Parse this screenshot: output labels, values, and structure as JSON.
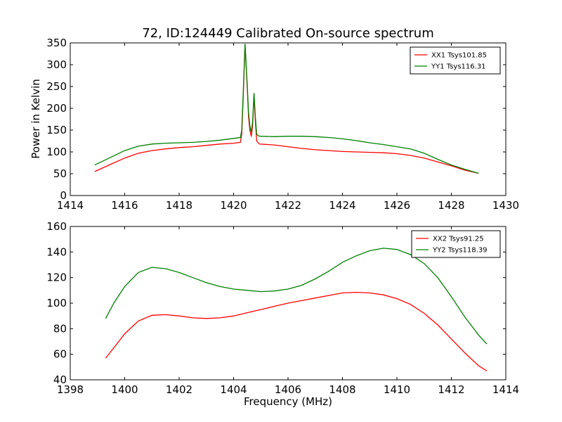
{
  "chart_data": [
    {
      "type": "line",
      "title": "72, ID:124449 Calibrated On-source spectrum",
      "xlabel": "",
      "ylabel": "Power in Kelvin",
      "xlim": [
        1414,
        1430
      ],
      "ylim": [
        0,
        350
      ],
      "xticks": [
        1414,
        1416,
        1418,
        1420,
        1422,
        1424,
        1426,
        1428,
        1430
      ],
      "yticks": [
        0,
        50,
        100,
        150,
        200,
        250,
        300,
        350
      ],
      "legend": "top-right",
      "series": [
        {
          "name": "XX1 Tsys101.85",
          "color": "#ff0000",
          "x": [
            1414.9,
            1415.5,
            1416,
            1416.5,
            1417,
            1417.5,
            1418,
            1418.5,
            1419,
            1419.5,
            1420,
            1420.25,
            1420.3,
            1420.35,
            1420.42,
            1420.5,
            1420.55,
            1420.6,
            1420.65,
            1420.7,
            1420.75,
            1420.8,
            1420.85,
            1420.95,
            1421.5,
            1422,
            1422.5,
            1423,
            1423.5,
            1424,
            1424.5,
            1425,
            1425.5,
            1426,
            1426.5,
            1427,
            1427.5,
            1428,
            1428.5,
            1429
          ],
          "y": [
            55,
            72,
            86,
            97,
            103,
            107,
            110,
            112,
            115,
            118,
            120,
            122,
            140,
            220,
            345,
            250,
            180,
            150,
            135,
            160,
            230,
            170,
            125,
            118,
            116,
            112,
            108,
            105,
            103,
            101,
            100,
            99,
            98,
            96,
            92,
            86,
            77,
            68,
            58,
            51
          ]
        },
        {
          "name": "YY1 Tsys116.31",
          "color": "#008000",
          "x": [
            1414.9,
            1415.5,
            1416,
            1416.5,
            1417,
            1417.5,
            1418,
            1418.5,
            1419,
            1419.5,
            1420,
            1420.25,
            1420.3,
            1420.35,
            1420.42,
            1420.5,
            1420.55,
            1420.6,
            1420.65,
            1420.7,
            1420.75,
            1420.8,
            1420.85,
            1420.95,
            1421.5,
            1422,
            1422.5,
            1423,
            1423.5,
            1424,
            1424.5,
            1425,
            1425.5,
            1426,
            1426.5,
            1427,
            1427.5,
            1428,
            1428.5,
            1429
          ],
          "y": [
            70,
            88,
            103,
            113,
            118,
            120,
            121,
            122,
            124,
            127,
            131,
            133,
            150,
            230,
            348,
            255,
            190,
            160,
            145,
            170,
            235,
            180,
            140,
            136,
            135,
            136,
            136,
            135,
            133,
            130,
            126,
            121,
            117,
            112,
            107,
            97,
            83,
            70,
            60,
            51
          ]
        }
      ]
    },
    {
      "type": "line",
      "title": "",
      "xlabel": "Frequency (MHz)",
      "ylabel": "",
      "xlim": [
        1398,
        1414
      ],
      "ylim": [
        40,
        160
      ],
      "xticks": [
        1398,
        1400,
        1402,
        1404,
        1406,
        1408,
        1410,
        1412,
        1414
      ],
      "yticks": [
        40,
        60,
        80,
        100,
        120,
        140,
        160
      ],
      "legend": "top-right",
      "series": [
        {
          "name": "XX2 Tsys91.25",
          "color": "#ff0000",
          "x": [
            1399.3,
            1399.6,
            1400,
            1400.5,
            1401,
            1401.5,
            1402,
            1402.5,
            1403,
            1403.5,
            1404,
            1404.5,
            1405,
            1405.5,
            1406,
            1406.5,
            1407,
            1407.5,
            1408,
            1408.5,
            1409,
            1409.5,
            1410,
            1410.5,
            1411,
            1411.5,
            1412,
            1412.5,
            1413,
            1413.3
          ],
          "y": [
            57,
            65,
            76,
            86,
            90.5,
            91,
            90,
            88.5,
            88,
            88.5,
            90,
            92.5,
            95,
            97.5,
            100,
            102,
            104,
            106,
            108,
            108.5,
            108,
            106.5,
            103.5,
            99,
            92,
            83,
            72,
            61,
            51,
            47
          ]
        },
        {
          "name": "YY2 Tsys118.39",
          "color": "#008000",
          "x": [
            1399.3,
            1399.6,
            1400,
            1400.5,
            1401,
            1401.5,
            1402,
            1402.5,
            1403,
            1403.5,
            1404,
            1404.5,
            1405,
            1405.5,
            1406,
            1406.5,
            1407,
            1407.5,
            1408,
            1408.5,
            1409,
            1409.5,
            1410,
            1410.5,
            1411,
            1411.5,
            1412,
            1412.5,
            1413,
            1413.3
          ],
          "y": [
            88,
            100,
            113,
            124,
            128,
            127,
            124,
            120,
            116,
            113,
            111,
            110,
            109,
            109.5,
            111,
            114,
            119,
            125,
            132,
            137,
            141,
            143,
            142,
            138,
            131,
            120,
            105,
            89,
            75,
            68
          ]
        }
      ]
    }
  ]
}
